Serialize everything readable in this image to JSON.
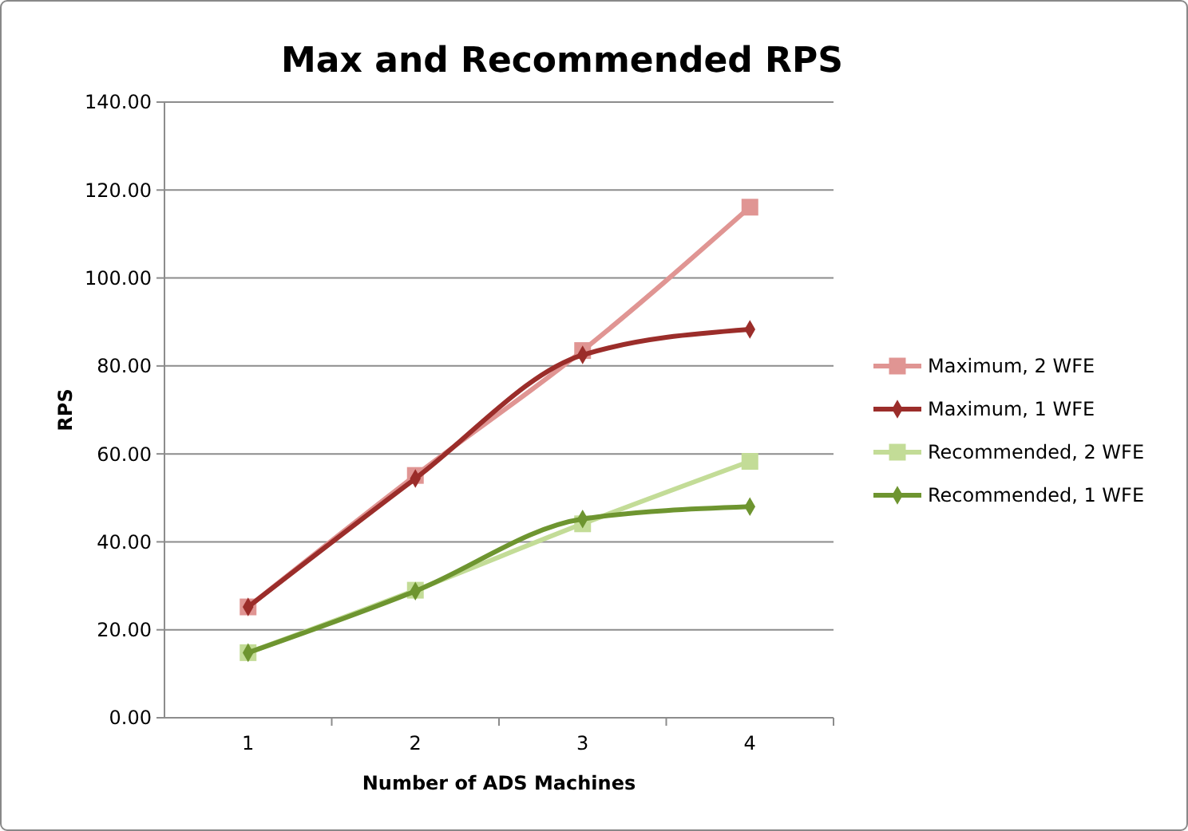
{
  "chart_data": {
    "type": "line",
    "title": "Max and Recommended RPS",
    "xlabel": "Number of ADS Machines",
    "ylabel": "RPS",
    "categories": [
      "1",
      "2",
      "3",
      "4"
    ],
    "series": [
      {
        "name": "Maximum, 2 WFE",
        "color": "#e09593",
        "marker": "square",
        "values": [
          25.2,
          55.1,
          83.5,
          116.1
        ]
      },
      {
        "name": "Maximum, 1 WFE",
        "color": "#9b2d2a",
        "marker": "diamond",
        "values": [
          25.2,
          54.4,
          82.5,
          88.3
        ]
      },
      {
        "name": "Recommended, 2 WFE",
        "color": "#c3dc97",
        "marker": "square",
        "values": [
          14.8,
          29.0,
          44.1,
          58.3
        ]
      },
      {
        "name": "Recommended, 1 WFE",
        "color": "#6e9530",
        "marker": "diamond",
        "values": [
          14.8,
          28.8,
          45.2,
          48.0
        ]
      }
    ],
    "ylim": [
      0,
      140
    ],
    "yticks": [
      {
        "value": 0,
        "label": "0.00"
      },
      {
        "value": 20,
        "label": "20.00"
      },
      {
        "value": 40,
        "label": "40.00"
      },
      {
        "value": 60,
        "label": "60.00"
      },
      {
        "value": 80,
        "label": "80.00"
      },
      {
        "value": 100,
        "label": "100.00"
      },
      {
        "value": 120,
        "label": "120.00"
      },
      {
        "value": 140,
        "label": "140.00"
      }
    ],
    "grid": "y",
    "legend": "right"
  }
}
